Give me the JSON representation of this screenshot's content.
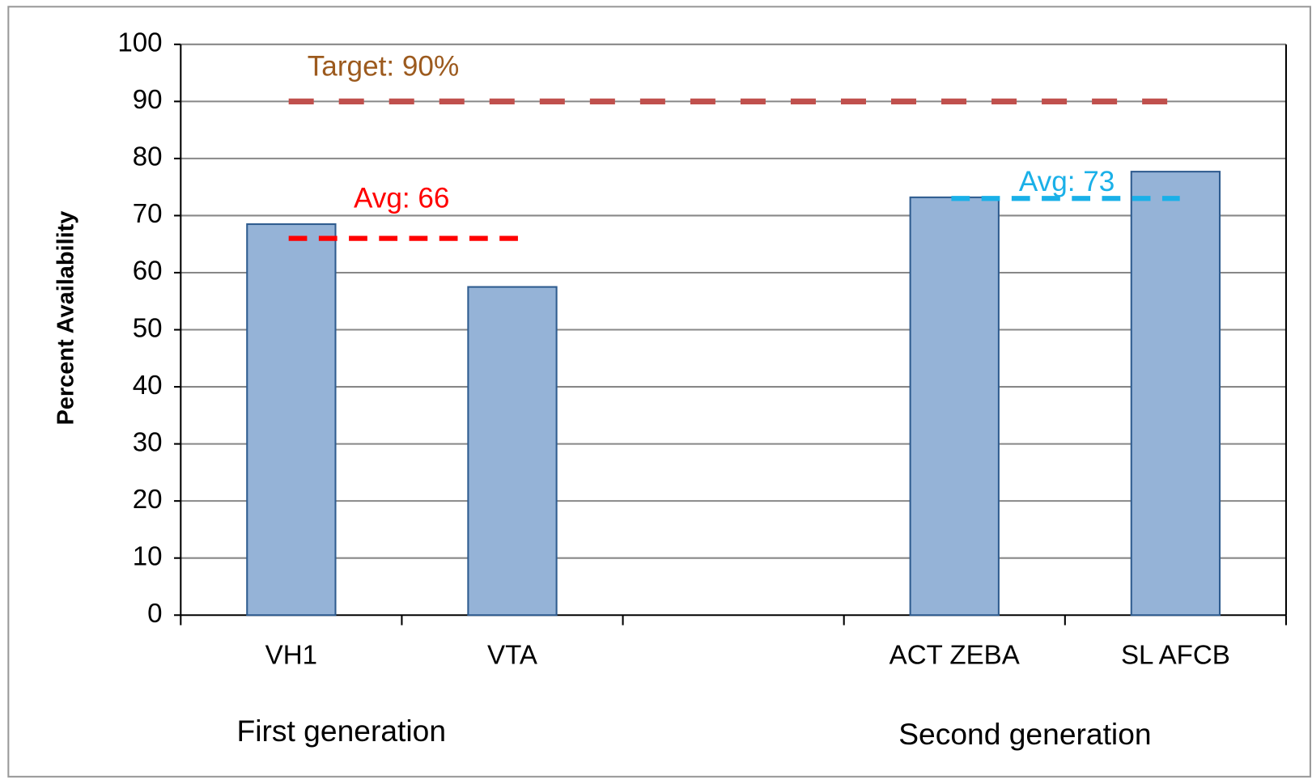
{
  "chart_data": {
    "type": "bar",
    "y_label": "Percent Availability",
    "categories": [
      "VH1",
      "VTA",
      null,
      "ACT ZEBA",
      "SL AFCB"
    ],
    "values": [
      68.5,
      57.5,
      null,
      73.2,
      77.7
    ],
    "color": "#95b3d7",
    "ylim": [
      0,
      100
    ],
    "yticks": [
      0,
      10,
      20,
      30,
      40,
      50,
      60,
      70,
      80,
      90,
      100
    ],
    "grid": true,
    "group_labels": [
      "First generation",
      "Second generation"
    ],
    "reference_lines": [
      {
        "value": 90,
        "label": "Target: 90%",
        "color": "#c0504d",
        "label_color": "#9c5a1e"
      },
      {
        "value": 66,
        "label": "Avg: 66",
        "color": "#ff0000",
        "label_color": "#ff0000"
      },
      {
        "value": 73,
        "label": "Avg: 73",
        "color": "#1ab0e8",
        "label_color": "#1ab0e8"
      }
    ]
  }
}
